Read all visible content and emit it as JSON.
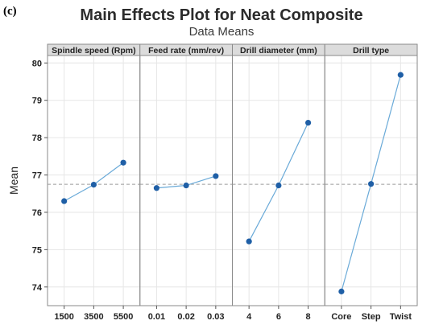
{
  "figure_label": "(c)",
  "chart_data": {
    "type": "line",
    "title": "Main Effects Plot for Neat Composite",
    "subtitle": "Data Means",
    "ylabel": "Mean",
    "ylim": [
      73.5,
      80.2
    ],
    "yticks": [
      74,
      75,
      76,
      77,
      78,
      79,
      80
    ],
    "grand_mean": 76.75,
    "grid": true,
    "colors": {
      "series": "#1f5fa6",
      "line": "#6aaad8",
      "mean_line": "#9a9a9a",
      "header_bg": "#dcdcdc",
      "grid": "#e6e6e6"
    },
    "panels": [
      {
        "name": "Spindle speed (Rpm)",
        "categories": [
          "1500",
          "3500",
          "5500"
        ],
        "values": [
          76.3,
          76.74,
          77.33
        ]
      },
      {
        "name": "Feed rate (mm/rev)",
        "categories": [
          "0.01",
          "0.02",
          "0.03"
        ],
        "values": [
          76.65,
          76.72,
          76.97
        ]
      },
      {
        "name": "Drill diameter (mm)",
        "categories": [
          "4",
          "6",
          "8"
        ],
        "values": [
          75.22,
          76.72,
          78.4
        ]
      },
      {
        "name": "Drill type",
        "categories": [
          "Core",
          "Step",
          "Twist"
        ],
        "values": [
          73.88,
          76.76,
          79.68
        ]
      }
    ]
  }
}
